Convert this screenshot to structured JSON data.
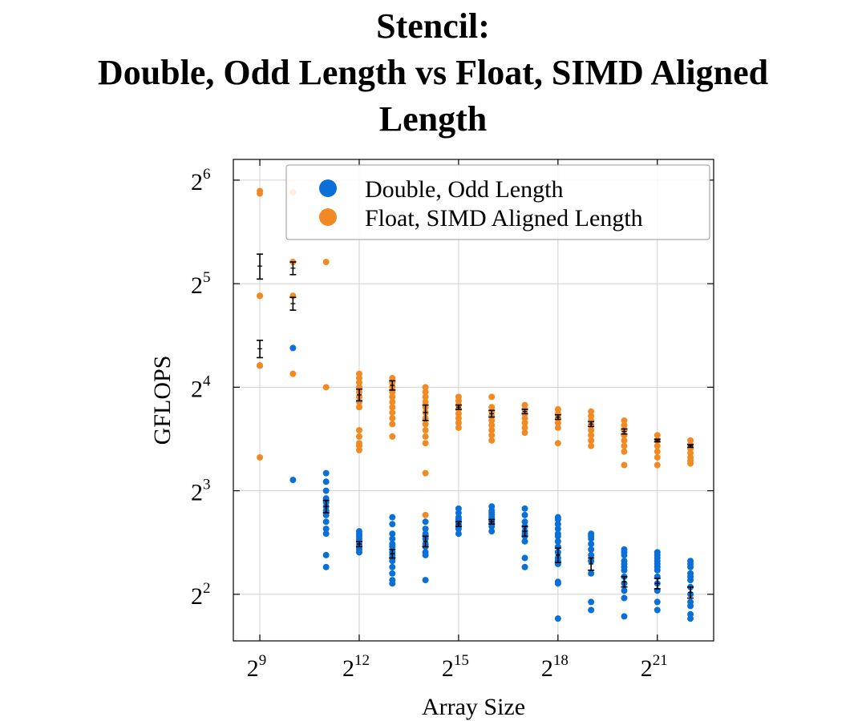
{
  "title_lines": [
    "Stencil:",
    "Double, Odd Length vs Float, SIMD Aligned",
    "Length"
  ],
  "colors": {
    "double": "#0a6fd6",
    "float": "#f28a24",
    "errorbar": "#000000",
    "grid": "#d0d0d0"
  },
  "chart_data": {
    "type": "scatter",
    "title": "Stencil: Double, Odd Length vs Float, SIMD Aligned Length",
    "xlabel": "Array Size",
    "ylabel": "GFLOPS",
    "x_scale": "log2",
    "y_scale": "log2",
    "xlim_exp": [
      8.2,
      22.7
    ],
    "ylim_exp": [
      1.55,
      6.2
    ],
    "x_ticks": [
      {
        "base": "2",
        "exp": "9",
        "value_exp": 9
      },
      {
        "base": "2",
        "exp": "12",
        "value_exp": 12
      },
      {
        "base": "2",
        "exp": "15",
        "value_exp": 15
      },
      {
        "base": "2",
        "exp": "18",
        "value_exp": 18
      },
      {
        "base": "2",
        "exp": "21",
        "value_exp": 21
      }
    ],
    "y_ticks": [
      {
        "base": "2",
        "exp": "2",
        "value_exp": 2
      },
      {
        "base": "2",
        "exp": "3",
        "value_exp": 3
      },
      {
        "base": "2",
        "exp": "4",
        "value_exp": 4
      },
      {
        "base": "2",
        "exp": "5",
        "value_exp": 5
      },
      {
        "base": "2",
        "exp": "6",
        "value_exp": 6
      }
    ],
    "grid": true,
    "legend": {
      "position": "top-right",
      "entries": [
        "Double, Odd Length",
        "Float, SIMD Aligned Length"
      ]
    },
    "series": [
      {
        "name": "Double, Odd Length",
        "key": "double",
        "points": [
          {
            "x_exp": 9,
            "y": [
              18.5,
              18.5
            ]
          },
          {
            "x_exp": 10,
            "y": [
              8.6,
              20.8
            ]
          },
          {
            "x_exp": 11,
            "y": [
              4.8,
              5.2,
              6.0,
              6.2,
              6.5,
              6.8,
              7.0,
              7.2,
              7.4,
              7.6,
              8.0,
              8.5,
              9.0
            ]
          },
          {
            "x_exp": 12,
            "y": [
              5.3,
              5.4,
              5.5,
              5.6,
              5.7,
              5.8,
              5.9,
              6.0,
              6.1
            ]
          },
          {
            "x_exp": 13,
            "y": [
              4.3,
              4.4,
              4.6,
              4.8,
              5.0,
              5.1,
              5.2,
              5.3,
              5.5,
              5.6,
              5.8,
              6.0,
              6.4,
              6.7
            ]
          },
          {
            "x_exp": 14,
            "y": [
              4.4,
              5.2,
              5.3,
              5.5,
              5.6,
              5.8,
              5.9,
              6.0,
              6.2,
              6.5
            ]
          },
          {
            "x_exp": 15,
            "y": [
              6.0,
              6.2,
              6.3,
              6.4,
              6.5,
              6.6,
              6.7,
              6.9,
              7.1
            ]
          },
          {
            "x_exp": 16,
            "y": [
              6.1,
              6.3,
              6.4,
              6.5,
              6.6,
              6.7,
              6.8,
              6.9,
              7.0,
              7.2
            ]
          },
          {
            "x_exp": 17,
            "y": [
              4.8,
              5.1,
              5.7,
              5.9,
              6.0,
              6.1,
              6.3,
              6.5,
              6.8,
              7.1
            ]
          },
          {
            "x_exp": 18,
            "y": [
              3.4,
              4.3,
              4.35,
              4.9,
              5.0,
              5.1,
              5.3,
              5.5,
              5.7,
              5.9,
              6.0,
              6.2,
              6.4,
              6.6,
              6.7
            ]
          },
          {
            "x_exp": 19,
            "y": [
              3.6,
              3.8,
              4.6,
              5.0,
              5.2,
              5.4,
              5.6,
              5.8,
              5.9,
              6.0
            ]
          },
          {
            "x_exp": 20,
            "y": [
              3.45,
              3.9,
              4.1,
              4.3,
              4.5,
              4.7,
              4.8,
              4.9,
              5.0,
              5.2,
              5.3,
              5.4
            ]
          },
          {
            "x_exp": 21,
            "y": [
              3.6,
              3.8,
              4.1,
              4.3,
              4.5,
              4.7,
              4.8,
              4.9,
              5.0,
              5.1,
              5.2,
              5.3
            ]
          },
          {
            "x_exp": 22,
            "y": [
              3.4,
              3.5,
              3.7,
              3.8,
              4.0,
              4.2,
              4.4,
              4.5,
              4.6,
              4.8,
              4.9,
              5.0
            ]
          }
        ],
        "means": [
          {
            "x_exp": 11,
            "y": 7.2,
            "err": 0.3
          },
          {
            "x_exp": 12,
            "y": 5.6,
            "err": 0.1
          },
          {
            "x_exp": 13,
            "y": 5.25,
            "err": 0.15
          },
          {
            "x_exp": 14,
            "y": 5.7,
            "err": 0.2
          },
          {
            "x_exp": 15,
            "y": 6.4,
            "err": 0.1
          },
          {
            "x_exp": 16,
            "y": 6.5,
            "err": 0.1
          },
          {
            "x_exp": 17,
            "y": 6.1,
            "err": 0.2
          },
          {
            "x_exp": 18,
            "y": 5.2,
            "err": 0.25
          },
          {
            "x_exp": 19,
            "y": 4.9,
            "err": 0.2
          },
          {
            "x_exp": 20,
            "y": 4.35,
            "err": 0.15
          },
          {
            "x_exp": 21,
            "y": 4.3,
            "err": 0.15
          },
          {
            "x_exp": 22,
            "y": 4.05,
            "err": 0.15
          }
        ]
      },
      {
        "name": "Float, SIMD Aligned Length",
        "key": "float",
        "points": [
          {
            "x_exp": 9,
            "y": [
              10.0,
              18.5,
              18.5,
              29.5,
              29.5,
              58.5,
              59.5
            ]
          },
          {
            "x_exp": 10,
            "y": [
              17.5,
              29.5,
              37.0,
              59.0
            ]
          },
          {
            "x_exp": 11,
            "y": [
              16.0,
              37.0
            ]
          },
          {
            "x_exp": 12,
            "y": [
              10.5,
              10.8,
              11.0,
              11.5,
              12.0,
              14.0,
              14.5,
              15.0,
              15.5,
              16.0,
              16.5,
              17.0,
              17.5
            ]
          },
          {
            "x_exp": 13,
            "y": [
              11.5,
              12.5,
              13.0,
              13.5,
              14.0,
              14.5,
              15.0,
              15.5,
              16.0,
              16.5,
              17.0
            ]
          },
          {
            "x_exp": 14,
            "y": [
              6.8,
              9.0,
              11.0,
              11.5,
              12.0,
              12.5,
              13.0,
              13.5,
              14.0,
              14.5,
              15.0,
              15.5,
              16.0
            ]
          },
          {
            "x_exp": 15,
            "y": [
              12.2,
              12.6,
              13.0,
              13.4,
              13.8,
              14.2,
              14.6,
              15.0
            ]
          },
          {
            "x_exp": 16,
            "y": [
              11.2,
              11.6,
              12.0,
              12.4,
              12.8,
              13.2,
              13.6,
              14.0,
              15.0
            ]
          },
          {
            "x_exp": 17,
            "y": [
              11.8,
              12.2,
              12.6,
              13.0,
              13.4,
              13.8,
              14.2
            ]
          },
          {
            "x_exp": 18,
            "y": [
              11.0,
              12.2,
              12.6,
              13.0,
              13.4,
              13.8
            ]
          },
          {
            "x_exp": 19,
            "y": [
              10.8,
              11.2,
              11.6,
              12.0,
              12.4,
              12.8,
              13.2,
              13.6
            ]
          },
          {
            "x_exp": 20,
            "y": [
              9.5,
              10.4,
              10.8,
              11.2,
              11.6,
              12.0,
              12.4,
              12.8
            ]
          },
          {
            "x_exp": 21,
            "y": [
              9.5,
              10.0,
              10.4,
              10.8,
              11.2,
              11.6
            ]
          },
          {
            "x_exp": 22,
            "y": [
              9.6,
              9.8,
              10.0,
              10.3,
              10.6,
              10.9,
              11.2
            ]
          }
        ],
        "means": [
          {
            "x_exp": 9,
            "y": 20.7,
            "err": 1.2
          },
          {
            "x_exp": 9,
            "y": 36.0,
            "err": 3.0
          },
          {
            "x_exp": 10,
            "y": 28.0,
            "err": 1.2
          },
          {
            "x_exp": 10,
            "y": 35.5,
            "err": 1.5
          },
          {
            "x_exp": 12,
            "y": 15.2,
            "err": 0.6
          },
          {
            "x_exp": 13,
            "y": 16.2,
            "err": 0.5
          },
          {
            "x_exp": 14,
            "y": 13.5,
            "err": 0.7
          },
          {
            "x_exp": 15,
            "y": 14.0,
            "err": 0.2
          },
          {
            "x_exp": 16,
            "y": 13.4,
            "err": 0.3
          },
          {
            "x_exp": 17,
            "y": 13.6,
            "err": 0.2
          },
          {
            "x_exp": 18,
            "y": 13.1,
            "err": 0.2
          },
          {
            "x_exp": 19,
            "y": 12.5,
            "err": 0.2
          },
          {
            "x_exp": 20,
            "y": 11.9,
            "err": 0.2
          },
          {
            "x_exp": 21,
            "y": 11.2,
            "err": 0.1
          },
          {
            "x_exp": 22,
            "y": 10.8,
            "err": 0.1
          }
        ]
      }
    ]
  }
}
